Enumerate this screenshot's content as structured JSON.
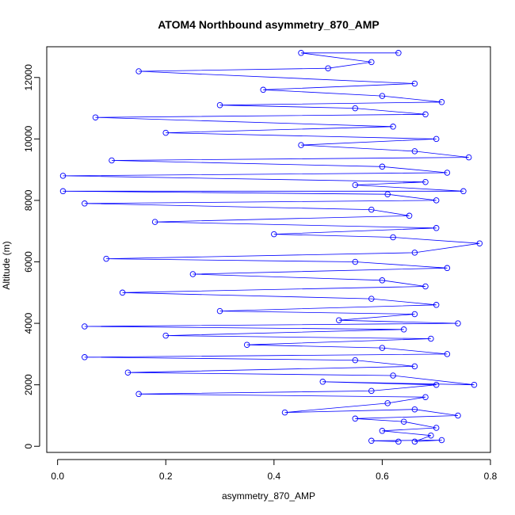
{
  "chart_data": {
    "type": "scatter",
    "title": "ATOM4 Northbound asymmetry_870_AMP",
    "xlabel": "asymmetry_870_AMP",
    "ylabel": "Altitude (m)",
    "xlim": [
      -0.02,
      0.8
    ],
    "ylim": [
      -200,
      13000
    ],
    "x_ticks": [
      {
        "value": 0.0,
        "label": "0.0"
      },
      {
        "value": 0.2,
        "label": "0.2"
      },
      {
        "value": 0.4,
        "label": "0.4"
      },
      {
        "value": 0.6,
        "label": "0.6"
      },
      {
        "value": 0.8,
        "label": "0.8"
      }
    ],
    "y_ticks": [
      {
        "value": 0,
        "label": "0"
      },
      {
        "value": 2000,
        "label": "2000"
      },
      {
        "value": 4000,
        "label": "4000"
      },
      {
        "value": 6000,
        "label": "6000"
      },
      {
        "value": 8000,
        "label": "8000"
      },
      {
        "value": 10000,
        "label": "10000"
      },
      {
        "value": 12000,
        "label": "12000"
      }
    ],
    "grid": false,
    "legend": "none",
    "style": {
      "marker": "open-circle",
      "connected": true,
      "color": "#0000ff"
    },
    "series": [
      {
        "points": [
          [
            0.63,
            150
          ],
          [
            0.58,
            180
          ],
          [
            0.71,
            200
          ],
          [
            0.66,
            150
          ],
          [
            0.69,
            350
          ],
          [
            0.6,
            500
          ],
          [
            0.7,
            600
          ],
          [
            0.64,
            800
          ],
          [
            0.55,
            900
          ],
          [
            0.74,
            1000
          ],
          [
            0.66,
            1200
          ],
          [
            0.42,
            1100
          ],
          [
            0.61,
            1400
          ],
          [
            0.68,
            1600
          ],
          [
            0.15,
            1700
          ],
          [
            0.58,
            1800
          ],
          [
            0.7,
            2000
          ],
          [
            0.49,
            2100
          ],
          [
            0.77,
            2000
          ],
          [
            0.62,
            2300
          ],
          [
            0.13,
            2400
          ],
          [
            0.66,
            2600
          ],
          [
            0.55,
            2800
          ],
          [
            0.05,
            2900
          ],
          [
            0.72,
            3000
          ],
          [
            0.6,
            3200
          ],
          [
            0.35,
            3300
          ],
          [
            0.69,
            3500
          ],
          [
            0.2,
            3600
          ],
          [
            0.64,
            3800
          ],
          [
            0.05,
            3900
          ],
          [
            0.74,
            4000
          ],
          [
            0.52,
            4100
          ],
          [
            0.66,
            4300
          ],
          [
            0.3,
            4400
          ],
          [
            0.7,
            4600
          ],
          [
            0.58,
            4800
          ],
          [
            0.12,
            5000
          ],
          [
            0.68,
            5200
          ],
          [
            0.6,
            5400
          ],
          [
            0.25,
            5600
          ],
          [
            0.72,
            5800
          ],
          [
            0.55,
            6000
          ],
          [
            0.09,
            6100
          ],
          [
            0.66,
            6300
          ],
          [
            0.78,
            6600
          ],
          [
            0.62,
            6800
          ],
          [
            0.4,
            6900
          ],
          [
            0.7,
            7100
          ],
          [
            0.18,
            7300
          ],
          [
            0.65,
            7500
          ],
          [
            0.58,
            7700
          ],
          [
            0.05,
            7900
          ],
          [
            0.7,
            8000
          ],
          [
            0.61,
            8200
          ],
          [
            0.01,
            8300
          ],
          [
            0.75,
            8300
          ],
          [
            0.55,
            8500
          ],
          [
            0.68,
            8600
          ],
          [
            0.01,
            8800
          ],
          [
            0.72,
            8900
          ],
          [
            0.6,
            9100
          ],
          [
            0.1,
            9300
          ],
          [
            0.76,
            9400
          ],
          [
            0.66,
            9600
          ],
          [
            0.45,
            9800
          ],
          [
            0.7,
            10000
          ],
          [
            0.2,
            10200
          ],
          [
            0.62,
            10400
          ],
          [
            0.07,
            10700
          ],
          [
            0.68,
            10800
          ],
          [
            0.55,
            11000
          ],
          [
            0.3,
            11100
          ],
          [
            0.71,
            11200
          ],
          [
            0.6,
            11400
          ],
          [
            0.38,
            11600
          ],
          [
            0.66,
            11800
          ],
          [
            0.15,
            12200
          ],
          [
            0.5,
            12300
          ],
          [
            0.58,
            12500
          ],
          [
            0.45,
            12800
          ],
          [
            0.63,
            12800
          ]
        ]
      }
    ]
  }
}
